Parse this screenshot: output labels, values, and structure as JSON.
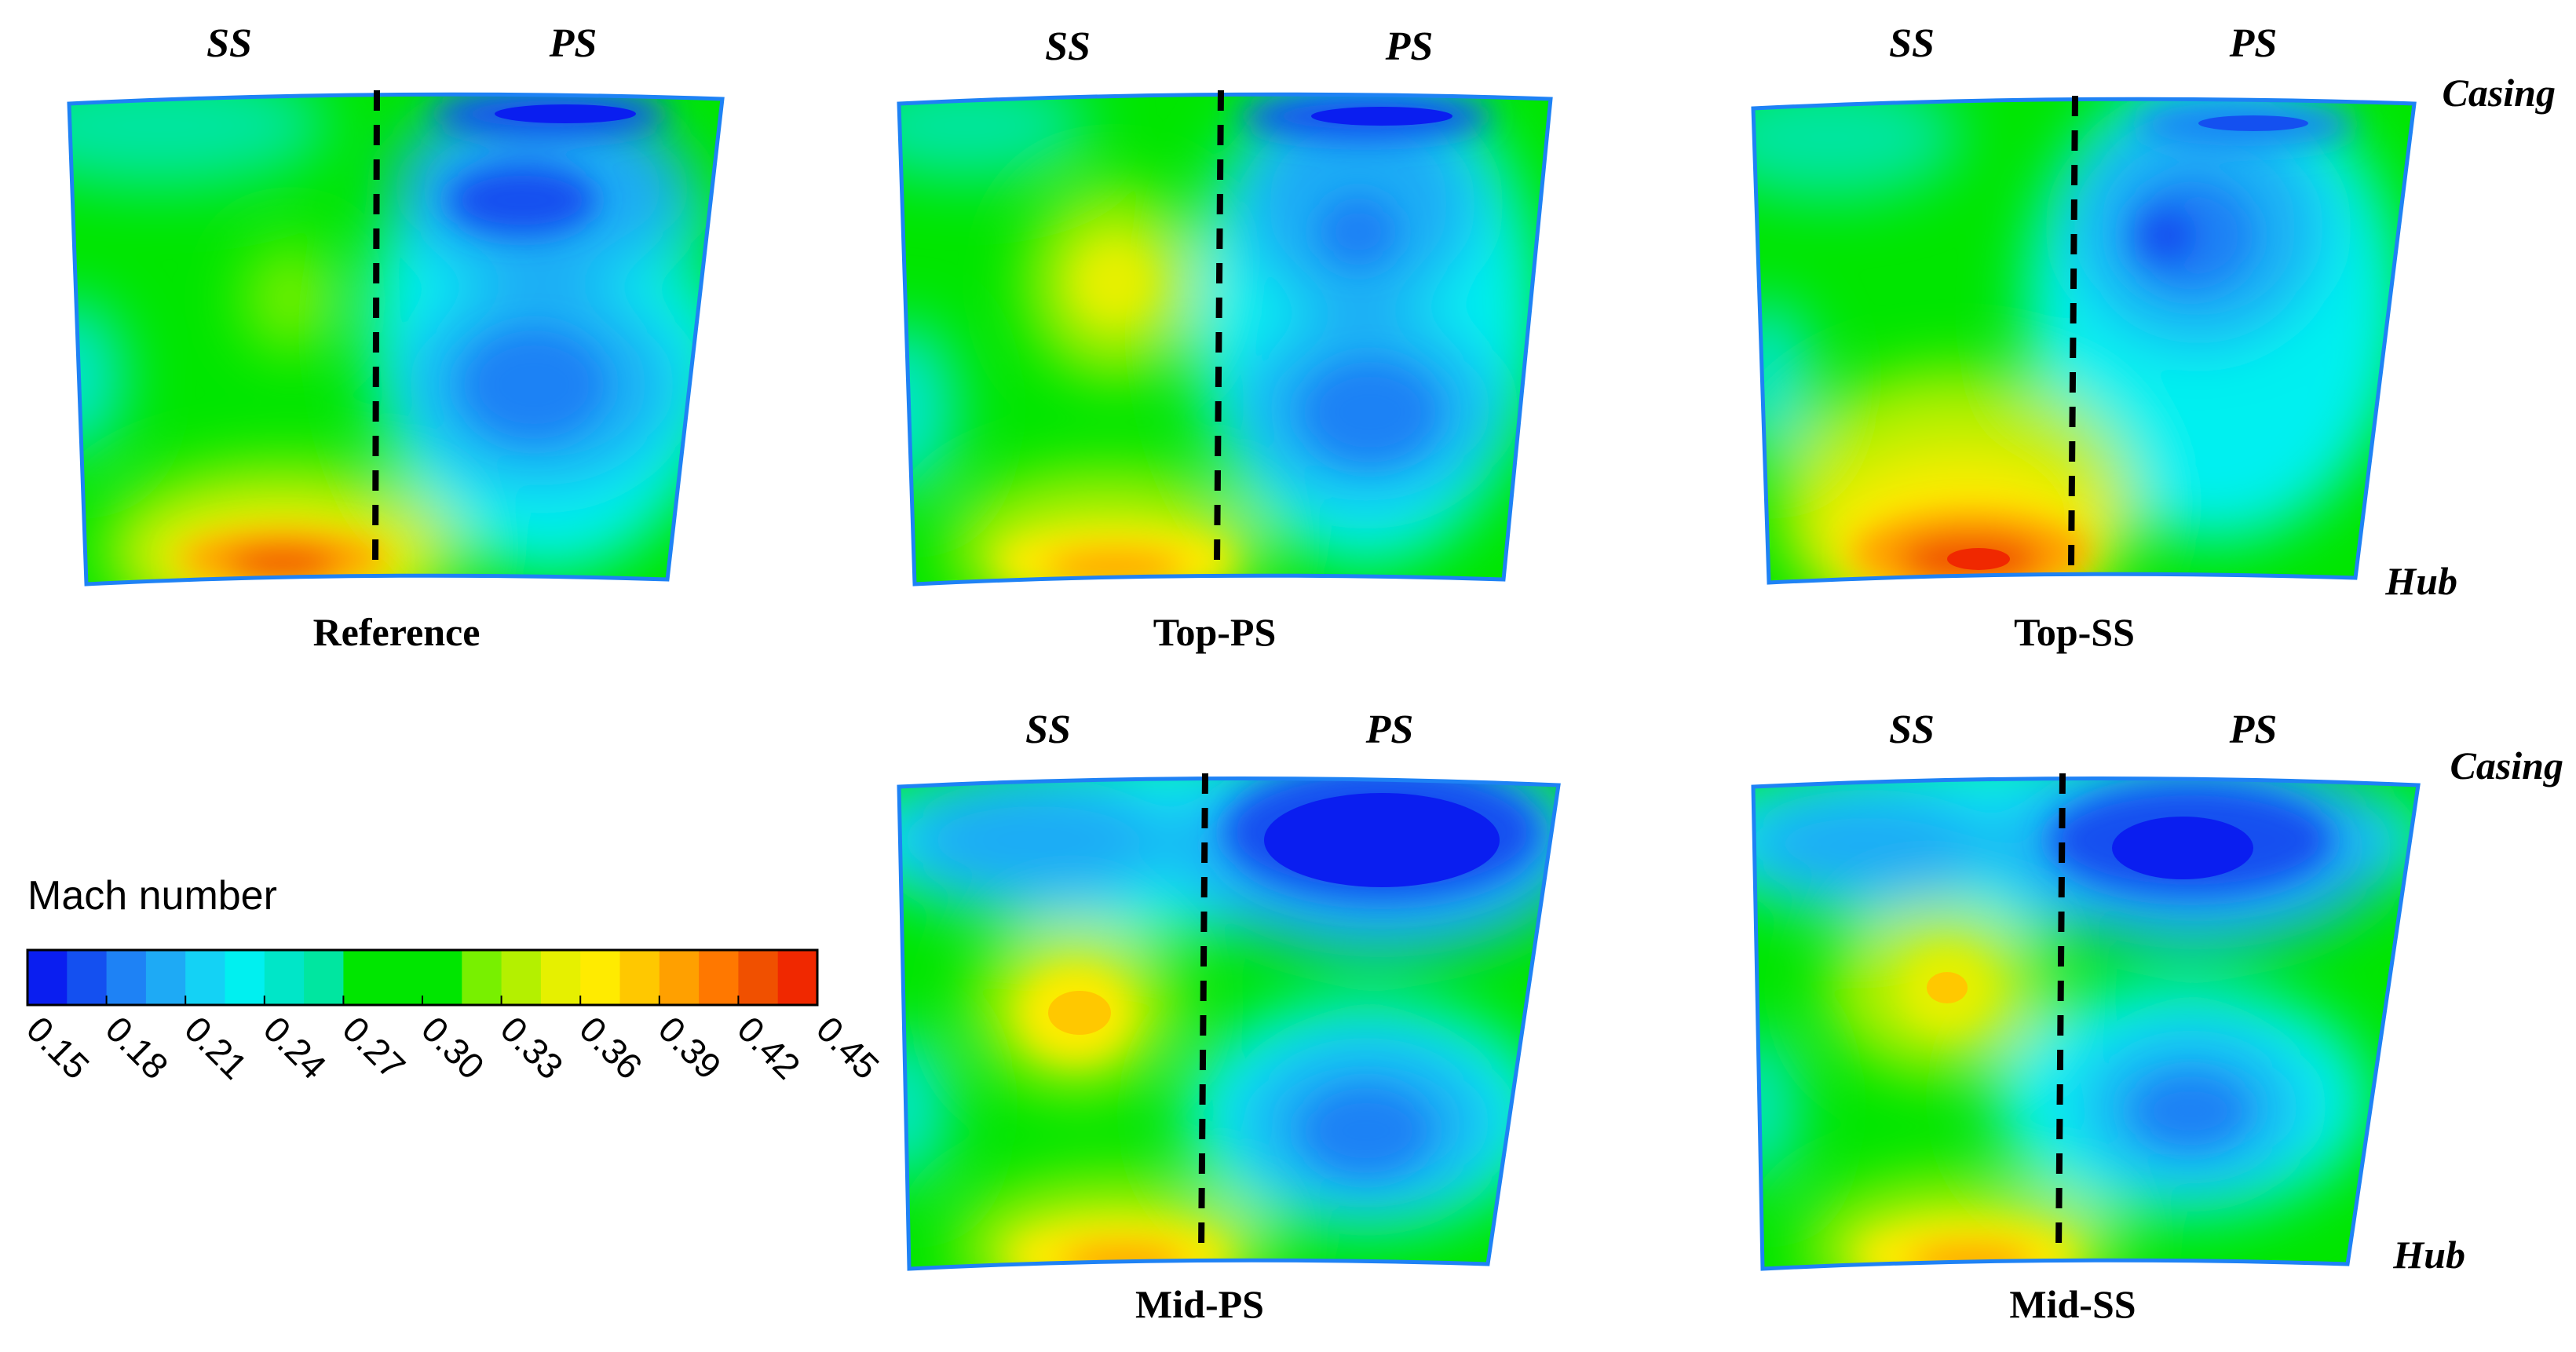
{
  "figure": {
    "side_labels": {
      "suction": "SS",
      "pressure": "PS"
    },
    "wall_labels": {
      "casing": "Casing",
      "hub": "Hub"
    },
    "panels": [
      {
        "id": "reference",
        "caption": "Reference"
      },
      {
        "id": "top-ps",
        "caption": "Top-PS"
      },
      {
        "id": "top-ss",
        "caption": "Top-SS"
      },
      {
        "id": "mid-ps",
        "caption": "Mid-PS"
      },
      {
        "id": "mid-ss",
        "caption": "Mid-SS"
      }
    ]
  },
  "colorbar": {
    "title": "Mach number",
    "ticks": [
      "0.15",
      "0.18",
      "0.21",
      "0.24",
      "0.27",
      "0.30",
      "0.33",
      "0.36",
      "0.39",
      "0.42",
      "0.45"
    ],
    "band_colors": [
      "#0a1ef0",
      "#1450f0",
      "#1e82f5",
      "#1eaaf5",
      "#14d2f5",
      "#00f0f0",
      "#00e6c8",
      "#00e6a0",
      "#00e600",
      "#00e600",
      "#00e600",
      "#78f000",
      "#b4f000",
      "#e6f000",
      "#ffeb00",
      "#ffc800",
      "#ffa000",
      "#ff7800",
      "#f05000",
      "#f02800"
    ]
  },
  "colors": {
    "blue_dark": "#0a1ef0",
    "blue": "#1e82f5",
    "cyan": "#00f0f0",
    "green": "#00e600",
    "yellow": "#ffeb00",
    "orange": "#ffa000",
    "red": "#f02800"
  }
}
